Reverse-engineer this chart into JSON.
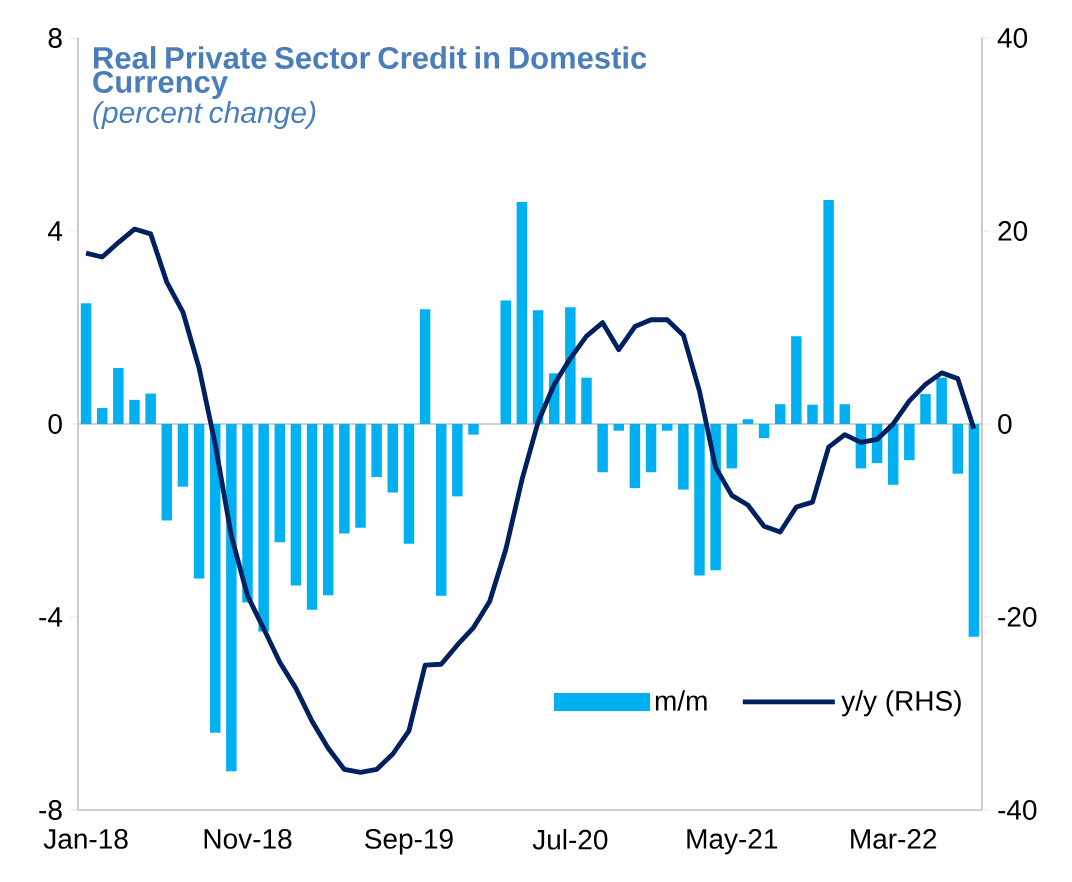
{
  "chart_data": {
    "type": "bar",
    "title": "Real Private Sector Credit in Domestic Currency",
    "subtitle": "(percent change)",
    "categories": [
      "Jan-18",
      null,
      null,
      null,
      null,
      null,
      null,
      null,
      null,
      null,
      "Nov-18",
      null,
      null,
      null,
      null,
      null,
      null,
      null,
      null,
      null,
      "Sep-19",
      null,
      null,
      null,
      null,
      null,
      null,
      null,
      null,
      null,
      "Jul-20",
      null,
      null,
      null,
      null,
      null,
      null,
      null,
      null,
      null,
      "May-21",
      null,
      null,
      null,
      null,
      null,
      null,
      null,
      null,
      null,
      "Mar-22",
      null,
      null,
      null,
      null,
      null
    ],
    "series": [
      {
        "name": "m/m",
        "color": "#00b0f0",
        "values": [
          2.5,
          0.33,
          1.16,
          0.5,
          0.63,
          -2.0,
          -1.3,
          -3.2,
          -6.4,
          -7.2,
          -3.7,
          -4.3,
          -2.45,
          -3.35,
          -3.85,
          -3.55,
          -2.27,
          -2.15,
          -1.1,
          -1.42,
          -2.48,
          2.38,
          -3.56,
          -1.5,
          -0.22,
          0,
          2.56,
          4.6,
          2.36,
          1.05,
          2.42,
          0.96,
          -1.0,
          -0.14,
          -1.33,
          -1.0,
          -0.14,
          -1.36,
          -3.14,
          -3.03,
          -0.92,
          0.1,
          -0.29,
          0.41,
          1.82,
          0.4,
          4.64,
          0.41,
          -0.92,
          -0.81,
          -1.26,
          -0.75,
          0.62,
          0.96,
          -1.03,
          -4.41
        ]
      },
      {
        "name": "y/y (RHS)",
        "type": "line",
        "axis": "y2",
        "color": "#002060",
        "values": [
          17.7,
          17.3,
          18.8,
          20.2,
          19.7,
          14.7,
          11.6,
          5.8,
          -2.1,
          -11.6,
          -17.8,
          -21.2,
          -24.7,
          -27.4,
          -30.8,
          -33.6,
          -35.8,
          -36.1,
          -35.8,
          -34.2,
          -31.8,
          -25.0,
          -24.9,
          -22.9,
          -21.1,
          -18.4,
          -13.0,
          -5.8,
          0.2,
          4.1,
          6.8,
          9.1,
          10.5,
          7.7,
          10.1,
          10.8,
          10.8,
          9.2,
          3.4,
          -4.5,
          -7.4,
          -8.4,
          -10.6,
          -11.2,
          -8.6,
          -8.1,
          -2.4,
          -1.1,
          -1.9,
          -1.6,
          0.0,
          2.4,
          4.1,
          5.3,
          4.7,
          -0.5
        ]
      }
    ],
    "ylim": [
      -8,
      8
    ],
    "yticks": [
      -8,
      -4,
      0,
      4,
      8
    ],
    "y2lim": [
      -40,
      40
    ],
    "y2ticks": [
      -40,
      -20,
      0,
      20,
      40
    ],
    "ref_lines": [
      {
        "axis": "y",
        "value": 0,
        "color": "#bfbfbf"
      }
    ],
    "legend": "bottom right"
  }
}
